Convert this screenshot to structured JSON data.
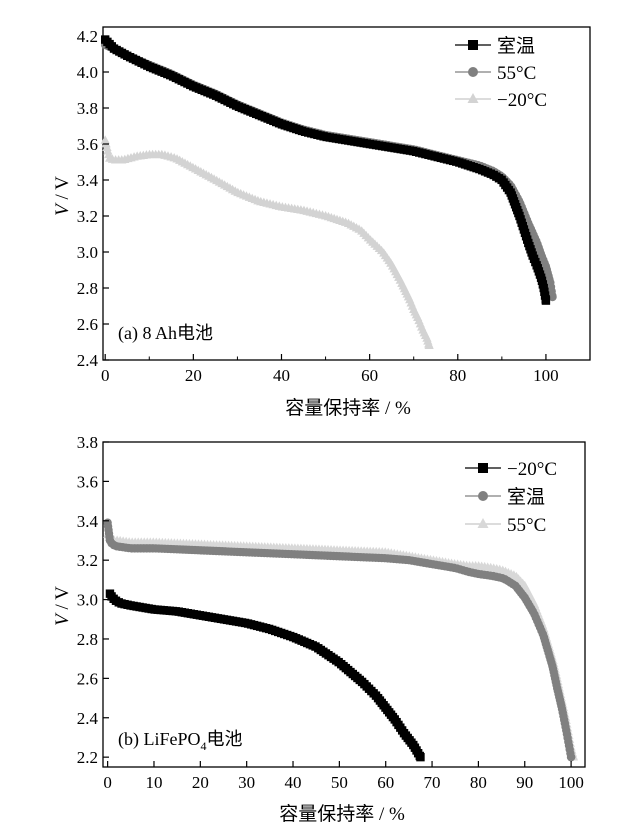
{
  "chart_data": [
    {
      "panel": "a",
      "type": "line",
      "annotation": "(a)  8 Ah电池",
      "xlabel": "容量保持率 / %",
      "ylabel": "V / V",
      "ylabel_italic": "V",
      "ylabel_unit": " / V",
      "xlim": [
        -0.5,
        110
      ],
      "ylim": [
        2.4,
        4.25
      ],
      "xticks": [
        0,
        20,
        40,
        60,
        80,
        100
      ],
      "yticks": [
        2.4,
        2.6,
        2.8,
        3.0,
        3.2,
        3.4,
        3.6,
        3.8,
        4.0,
        4.2
      ],
      "xtick_labels": [
        "0",
        "20",
        "40",
        "60",
        "80",
        "100"
      ],
      "ytick_labels": [
        "2.4",
        "2.6",
        "2.8",
        "3.0",
        "3.2",
        "3.4",
        "3.6",
        "3.8",
        "4.0",
        "4.2"
      ],
      "legend_position": "top-right",
      "series": [
        {
          "name": "室温",
          "marker": "square",
          "color": "#000000",
          "x": [
            0,
            2,
            5,
            10,
            15,
            20,
            25,
            30,
            35,
            40,
            45,
            50,
            55,
            60,
            65,
            70,
            75,
            80,
            85,
            88,
            90,
            92,
            94,
            96,
            97,
            98,
            99,
            99.5,
            100
          ],
          "y": [
            4.18,
            4.13,
            4.09,
            4.03,
            3.98,
            3.92,
            3.87,
            3.81,
            3.76,
            3.71,
            3.67,
            3.64,
            3.62,
            3.6,
            3.58,
            3.56,
            3.53,
            3.5,
            3.46,
            3.43,
            3.4,
            3.33,
            3.2,
            3.05,
            2.98,
            2.92,
            2.85,
            2.8,
            2.73
          ]
        },
        {
          "name": "55°C",
          "marker": "circle",
          "color": "#808080",
          "x": [
            0,
            2,
            5,
            10,
            15,
            20,
            25,
            30,
            35,
            40,
            45,
            50,
            55,
            60,
            65,
            70,
            75,
            80,
            85,
            88,
            90,
            92,
            94,
            96,
            98,
            99,
            100,
            101,
            101.5
          ],
          "y": [
            4.15,
            4.13,
            4.09,
            4.04,
            3.99,
            3.93,
            3.88,
            3.82,
            3.77,
            3.72,
            3.68,
            3.65,
            3.63,
            3.61,
            3.59,
            3.57,
            3.54,
            3.51,
            3.48,
            3.45,
            3.42,
            3.37,
            3.28,
            3.16,
            3.05,
            2.98,
            2.92,
            2.83,
            2.75
          ]
        },
        {
          "name": "−20°C",
          "marker": "triangle",
          "color": "#d3d3d3",
          "x": [
            0,
            0.5,
            1,
            2,
            4,
            7,
            10,
            13,
            16,
            19,
            22,
            25,
            30,
            35,
            40,
            45,
            50,
            55,
            58,
            60,
            63,
            65,
            67,
            69,
            70,
            71,
            72,
            73,
            73.5
          ],
          "y": [
            3.62,
            3.57,
            3.52,
            3.51,
            3.51,
            3.53,
            3.54,
            3.54,
            3.52,
            3.48,
            3.44,
            3.4,
            3.33,
            3.28,
            3.25,
            3.23,
            3.2,
            3.16,
            3.12,
            3.07,
            3.0,
            2.93,
            2.84,
            2.74,
            2.68,
            2.63,
            2.57,
            2.52,
            2.48
          ]
        }
      ]
    },
    {
      "panel": "b",
      "type": "line",
      "annotation_main": "(b) LiFePO",
      "annotation_sub": "4",
      "annotation_tail": "电池",
      "xlabel": "容量保持率 / %",
      "ylabel": "V / V",
      "ylabel_italic": "V",
      "ylabel_unit": " / V",
      "xlim": [
        -1,
        103
      ],
      "ylim": [
        2.15,
        3.8
      ],
      "xticks": [
        0,
        10,
        20,
        30,
        40,
        50,
        60,
        70,
        80,
        90,
        100
      ],
      "yticks": [
        2.2,
        2.4,
        2.6,
        2.8,
        3.0,
        3.2,
        3.4,
        3.6,
        3.8
      ],
      "xtick_labels": [
        "0",
        "10",
        "20",
        "30",
        "40",
        "50",
        "60",
        "70",
        "80",
        "90",
        "100"
      ],
      "ytick_labels": [
        "2.2",
        "2.4",
        "2.6",
        "2.8",
        "3.0",
        "3.2",
        "3.4",
        "3.6",
        "3.8"
      ],
      "legend_position": "top-right",
      "series": [
        {
          "name": "−20°C",
          "marker": "square",
          "color": "#000000",
          "x": [
            0.5,
            1,
            2,
            3,
            5,
            10,
            15,
            20,
            25,
            30,
            35,
            40,
            45,
            50,
            55,
            58,
            60,
            62,
            64,
            65,
            66,
            67,
            67.5
          ],
          "y": [
            3.03,
            3.01,
            2.99,
            2.98,
            2.97,
            2.95,
            2.94,
            2.92,
            2.9,
            2.88,
            2.85,
            2.81,
            2.76,
            2.68,
            2.58,
            2.51,
            2.45,
            2.39,
            2.32,
            2.29,
            2.26,
            2.22,
            2.2
          ]
        },
        {
          "name": "室温",
          "marker": "circle",
          "color": "#808080",
          "x": [
            0,
            0.5,
            1,
            2,
            5,
            10,
            20,
            30,
            40,
            50,
            60,
            65,
            70,
            75,
            78,
            80,
            83,
            85,
            86,
            88,
            90,
            92,
            94,
            96,
            97,
            98,
            99,
            100
          ],
          "y": [
            3.39,
            3.3,
            3.28,
            3.27,
            3.26,
            3.26,
            3.25,
            3.24,
            3.23,
            3.22,
            3.21,
            3.2,
            3.18,
            3.16,
            3.14,
            3.13,
            3.12,
            3.11,
            3.1,
            3.07,
            3.01,
            2.93,
            2.82,
            2.66,
            2.55,
            2.45,
            2.33,
            2.2
          ]
        },
        {
          "name": "55°C",
          "marker": "triangle",
          "color": "#d8d8d8",
          "x": [
            0,
            0.5,
            1,
            2,
            5,
            10,
            20,
            30,
            40,
            50,
            60,
            65,
            70,
            75,
            78,
            80,
            83,
            85,
            86,
            88,
            90,
            92,
            94,
            96,
            97,
            98,
            99,
            100,
            100.5
          ],
          "y": [
            3.33,
            3.31,
            3.3,
            3.3,
            3.29,
            3.29,
            3.28,
            3.27,
            3.26,
            3.25,
            3.24,
            3.22,
            3.2,
            3.18,
            3.17,
            3.17,
            3.16,
            3.15,
            3.14,
            3.12,
            3.07,
            2.98,
            2.86,
            2.7,
            2.6,
            2.49,
            2.38,
            2.25,
            2.2
          ]
        }
      ]
    }
  ]
}
